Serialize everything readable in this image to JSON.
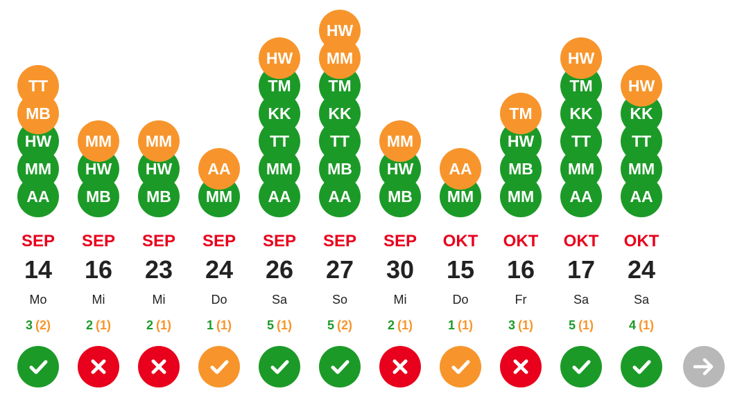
{
  "colors": {
    "yes": "#1c9a28",
    "maybe": "#f7952c",
    "no": "#e8001c",
    "next": "#b8b8b8",
    "text": "#222222"
  },
  "days": [
    {
      "month": "SEP",
      "day": "14",
      "weekday": "Mo",
      "yes_count": "3",
      "maybe_count": "(2)",
      "status": "yes",
      "status_icon": "check-icon",
      "attendees": [
        {
          "initials": "AA",
          "state": "yes"
        },
        {
          "initials": "MM",
          "state": "yes"
        },
        {
          "initials": "HW",
          "state": "yes"
        },
        {
          "initials": "MB",
          "state": "maybe"
        },
        {
          "initials": "TT",
          "state": "maybe"
        }
      ]
    },
    {
      "month": "SEP",
      "day": "16",
      "weekday": "Mi",
      "yes_count": "2",
      "maybe_count": "(1)",
      "status": "no",
      "status_icon": "cross-icon",
      "attendees": [
        {
          "initials": "MB",
          "state": "yes"
        },
        {
          "initials": "HW",
          "state": "yes"
        },
        {
          "initials": "MM",
          "state": "maybe"
        }
      ]
    },
    {
      "month": "SEP",
      "day": "23",
      "weekday": "Mi",
      "yes_count": "2",
      "maybe_count": "(1)",
      "status": "no",
      "status_icon": "cross-icon",
      "attendees": [
        {
          "initials": "MB",
          "state": "yes"
        },
        {
          "initials": "HW",
          "state": "yes"
        },
        {
          "initials": "MM",
          "state": "maybe"
        }
      ]
    },
    {
      "month": "SEP",
      "day": "24",
      "weekday": "Do",
      "yes_count": "1",
      "maybe_count": "(1)",
      "status": "maybe",
      "status_icon": "check-icon",
      "attendees": [
        {
          "initials": "MM",
          "state": "yes"
        },
        {
          "initials": "AA",
          "state": "maybe"
        }
      ]
    },
    {
      "month": "SEP",
      "day": "26",
      "weekday": "Sa",
      "yes_count": "5",
      "maybe_count": "(1)",
      "status": "yes",
      "status_icon": "check-icon",
      "attendees": [
        {
          "initials": "AA",
          "state": "yes"
        },
        {
          "initials": "MM",
          "state": "yes"
        },
        {
          "initials": "TT",
          "state": "yes"
        },
        {
          "initials": "KK",
          "state": "yes"
        },
        {
          "initials": "TM",
          "state": "yes"
        },
        {
          "initials": "HW",
          "state": "maybe"
        }
      ]
    },
    {
      "month": "SEP",
      "day": "27",
      "weekday": "So",
      "yes_count": "5",
      "maybe_count": "(2)",
      "status": "yes",
      "status_icon": "check-icon",
      "attendees": [
        {
          "initials": "AA",
          "state": "yes"
        },
        {
          "initials": "MB",
          "state": "yes"
        },
        {
          "initials": "TT",
          "state": "yes"
        },
        {
          "initials": "KK",
          "state": "yes"
        },
        {
          "initials": "TM",
          "state": "yes"
        },
        {
          "initials": "MM",
          "state": "maybe"
        },
        {
          "initials": "HW",
          "state": "maybe"
        }
      ]
    },
    {
      "month": "SEP",
      "day": "30",
      "weekday": "Mi",
      "yes_count": "2",
      "maybe_count": "(1)",
      "status": "no",
      "status_icon": "cross-icon",
      "attendees": [
        {
          "initials": "MB",
          "state": "yes"
        },
        {
          "initials": "HW",
          "state": "yes"
        },
        {
          "initials": "MM",
          "state": "maybe"
        }
      ]
    },
    {
      "month": "OKT",
      "day": "15",
      "weekday": "Do",
      "yes_count": "1",
      "maybe_count": "(1)",
      "status": "maybe",
      "status_icon": "check-icon",
      "attendees": [
        {
          "initials": "MM",
          "state": "yes"
        },
        {
          "initials": "AA",
          "state": "maybe"
        }
      ]
    },
    {
      "month": "OKT",
      "day": "16",
      "weekday": "Fr",
      "yes_count": "3",
      "maybe_count": "(1)",
      "status": "no",
      "status_icon": "cross-icon",
      "attendees": [
        {
          "initials": "MM",
          "state": "yes"
        },
        {
          "initials": "MB",
          "state": "yes"
        },
        {
          "initials": "HW",
          "state": "yes"
        },
        {
          "initials": "TM",
          "state": "maybe"
        }
      ]
    },
    {
      "month": "OKT",
      "day": "17",
      "weekday": "Sa",
      "yes_count": "5",
      "maybe_count": "(1)",
      "status": "yes",
      "status_icon": "check-icon",
      "attendees": [
        {
          "initials": "AA",
          "state": "yes"
        },
        {
          "initials": "MM",
          "state": "yes"
        },
        {
          "initials": "TT",
          "state": "yes"
        },
        {
          "initials": "KK",
          "state": "yes"
        },
        {
          "initials": "TM",
          "state": "yes"
        },
        {
          "initials": "HW",
          "state": "maybe"
        }
      ]
    },
    {
      "month": "OKT",
      "day": "24",
      "weekday": "Sa",
      "yes_count": "4",
      "maybe_count": "(1)",
      "status": "yes",
      "status_icon": "check-icon",
      "attendees": [
        {
          "initials": "AA",
          "state": "yes"
        },
        {
          "initials": "MM",
          "state": "yes"
        },
        {
          "initials": "TT",
          "state": "yes"
        },
        {
          "initials": "KK",
          "state": "yes"
        },
        {
          "initials": "HW",
          "state": "maybe"
        }
      ]
    }
  ],
  "next_button": {
    "icon": "arrow-right-icon"
  }
}
